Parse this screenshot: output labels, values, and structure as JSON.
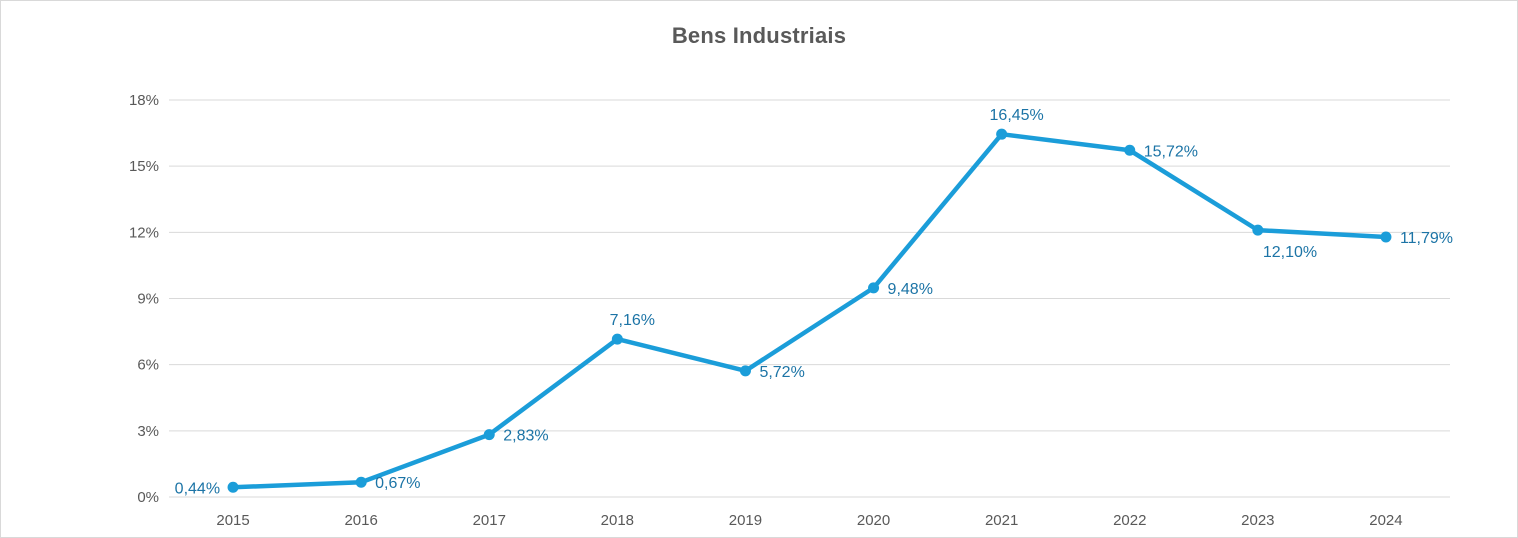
{
  "chart_data": {
    "type": "line",
    "title": "Bens Industriais",
    "categories": [
      "2015",
      "2016",
      "2017",
      "2018",
      "2019",
      "2020",
      "2021",
      "2022",
      "2023",
      "2024"
    ],
    "series": [
      {
        "name": "Bens Industriais",
        "values": [
          0.44,
          0.67,
          2.83,
          7.16,
          5.72,
          9.48,
          16.45,
          15.72,
          12.1,
          11.79
        ],
        "labels": [
          "0,44%",
          "0,67%",
          "2,83%",
          "7,16%",
          "5,72%",
          "9,48%",
          "16,45%",
          "15,72%",
          "12,10%",
          "11,79%"
        ],
        "label_positions": [
          "left",
          "right",
          "right",
          "above",
          "right",
          "right",
          "above",
          "right",
          "below",
          "right"
        ],
        "color": "#1b9dd9",
        "label_color": "#1c74a6"
      }
    ],
    "xlabel": "",
    "ylabel": "",
    "ylim": [
      0,
      18
    ],
    "ytick_interval": 3,
    "ytick_labels": [
      "0%",
      "3%",
      "6%",
      "9%",
      "12%",
      "15%",
      "18%"
    ],
    "grid": true,
    "legend": false,
    "colors": {
      "gridline": "#d9d9d9",
      "axis_text": "#595959",
      "title_text": "#595959",
      "frame_border": "#d9d9d9",
      "background": "#ffffff"
    }
  }
}
